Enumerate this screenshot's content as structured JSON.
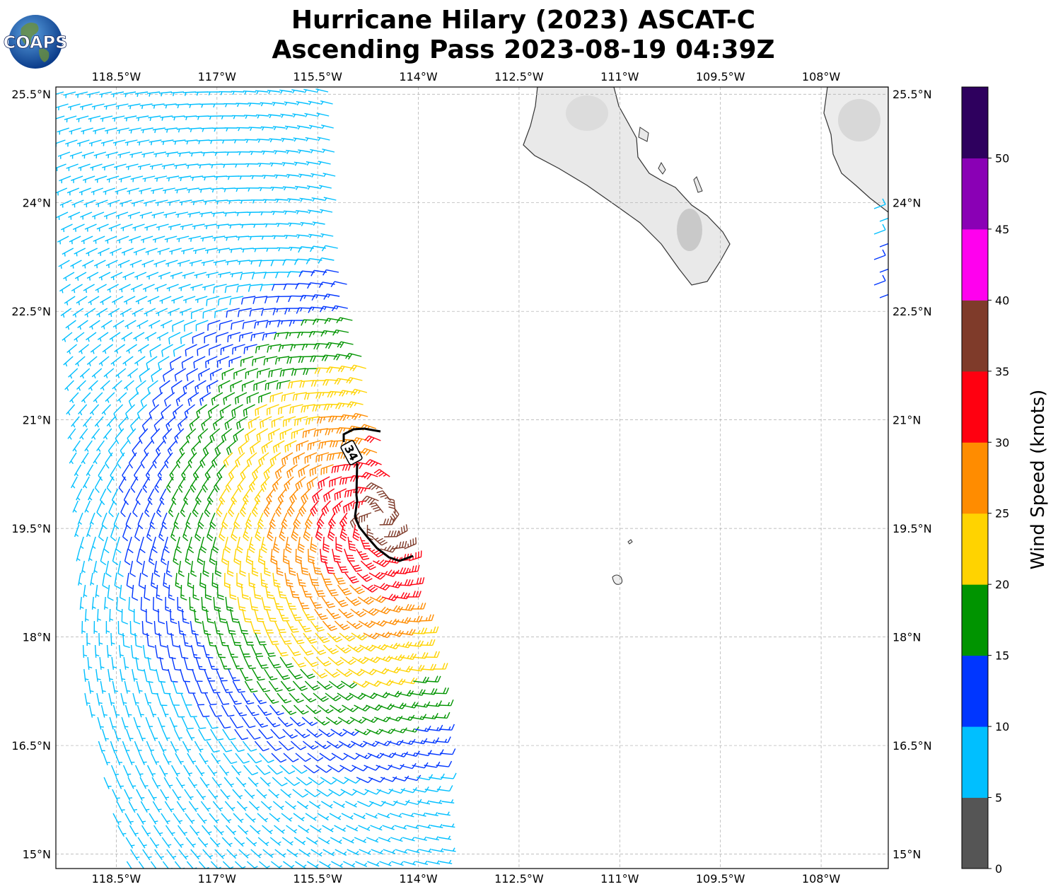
{
  "title": {
    "line1": "Hurricane Hilary (2023) ASCAT-C",
    "line2": "Ascending Pass 2023-08-19 04:39Z"
  },
  "logo": {
    "text": "COAPS"
  },
  "map": {
    "lon_range": [
      -119.4,
      -107.0
    ],
    "lat_range": [
      14.8,
      25.6
    ],
    "lon_ticks": [
      {
        "value": -118.5,
        "label": "118.5°W"
      },
      {
        "value": -117.0,
        "label": "117°W"
      },
      {
        "value": -115.5,
        "label": "115.5°W"
      },
      {
        "value": -114.0,
        "label": "114°W"
      },
      {
        "value": -112.5,
        "label": "112.5°W"
      },
      {
        "value": -111.0,
        "label": "111°W"
      },
      {
        "value": -109.5,
        "label": "109.5°W"
      },
      {
        "value": -108.0,
        "label": "108°W"
      }
    ],
    "lat_ticks": [
      {
        "value": 25.5,
        "label": "25.5°N"
      },
      {
        "value": 24.0,
        "label": "24°N"
      },
      {
        "value": 22.5,
        "label": "22.5°N"
      },
      {
        "value": 21.0,
        "label": "21°N"
      },
      {
        "value": 19.5,
        "label": "19.5°N"
      },
      {
        "value": 18.0,
        "label": "18°N"
      },
      {
        "value": 16.5,
        "label": "16.5°N"
      },
      {
        "value": 15.0,
        "label": "15°N"
      }
    ],
    "grid": true,
    "contour_label": "34",
    "storm_center": {
      "lon": -114.6,
      "lat": 19.6
    }
  },
  "colorbar": {
    "label": "Wind Speed (knots)",
    "ticks": [
      "0",
      "5",
      "10",
      "15",
      "20",
      "25",
      "30",
      "35",
      "40",
      "45",
      "50"
    ],
    "colors": [
      "#555555",
      "#00bfff",
      "#0036ff",
      "#009400",
      "#ffd300",
      "#ff8c00",
      "#ff0010",
      "#7f3b2a",
      "#ff00ee",
      "#8a00b5",
      "#2e005e"
    ]
  }
}
